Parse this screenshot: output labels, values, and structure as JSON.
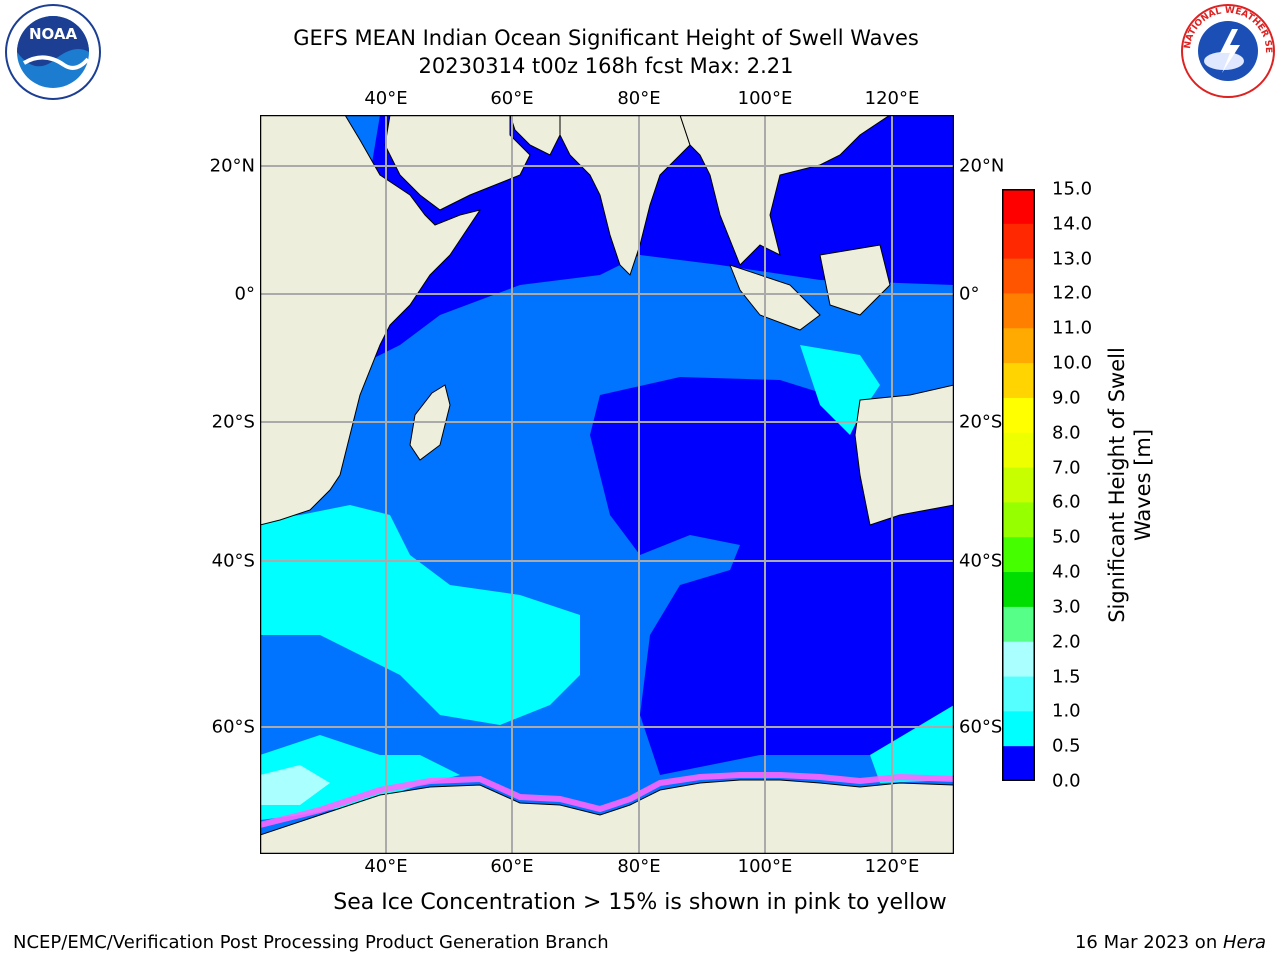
{
  "header": {
    "title_line1": "GEFS MEAN Indian Ocean Significant Height of Swell Waves",
    "title_line2": "20230314 t00z 168h fcst   Max: 2.21"
  },
  "map": {
    "lon_ticks": [
      "40°E",
      "60°E",
      "80°E",
      "100°E",
      "120°E"
    ],
    "lat_ticks": [
      "20°N",
      "0°",
      "20°S",
      "40°S",
      "60°S"
    ],
    "colors": {
      "land": "#eeeedd",
      "ocean_low": "#0000ff",
      "ocean_mid": "#0073ff",
      "ocean_high": "#00ffff",
      "grid": "#aaaaaa",
      "sea_ice": "#ff66ff"
    }
  },
  "colorbar": {
    "title_line1": "Significant Height of Swell",
    "title_line2": "Waves [m]",
    "labels": [
      "15.0",
      "14.0",
      "13.0",
      "12.0",
      "11.0",
      "10.0",
      "9.0",
      "8.0",
      "7.0",
      "6.0",
      "5.0",
      "4.0",
      "3.0",
      "2.0",
      "1.5",
      "1.0",
      "0.5",
      "0.0"
    ],
    "colors": [
      "#ff0000",
      "#ff2800",
      "#ff5500",
      "#ff8000",
      "#ffaa00",
      "#ffd400",
      "#ffff00",
      "#eeff00",
      "#c8ff00",
      "#96ff00",
      "#45ff00",
      "#00dd00",
      "#55ff88",
      "#aaffff",
      "#55ffff",
      "#00ffff",
      "#0073ff",
      "#0000ff"
    ]
  },
  "caption": "Sea Ice Concentration > 15% is shown in pink to yellow",
  "footer": {
    "left": "NCEP/EMC/Verification Post Processing Product Generation Branch",
    "right_date": "16 Mar 2023 on ",
    "right_host": "Hera"
  },
  "logos": {
    "noaa_text": "NOAA",
    "nws_text": "NATIONAL WEATHER SERVICE"
  }
}
